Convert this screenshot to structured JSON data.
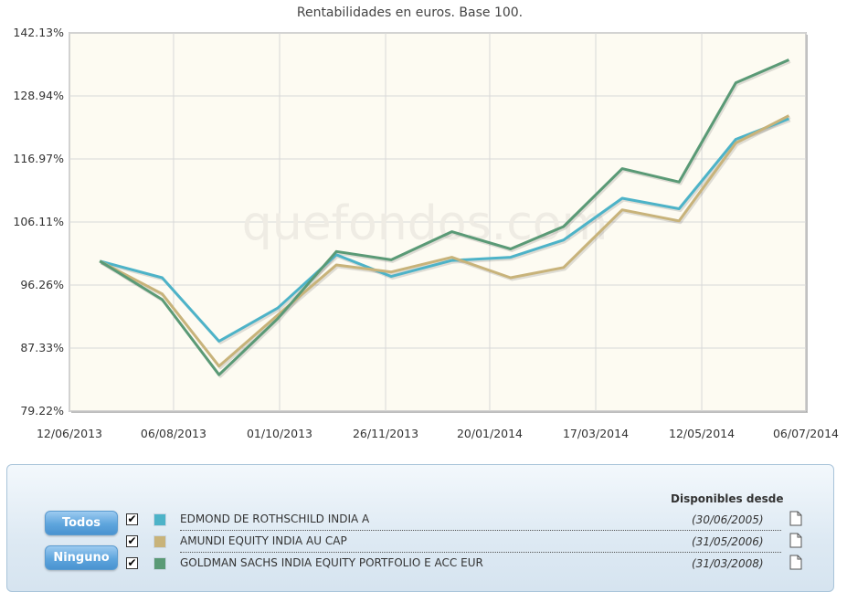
{
  "chart_data": {
    "type": "line",
    "title": "Rentabilidades en euros. Base 100.",
    "watermark": "quefondos.com",
    "y_ticks": [
      "142.13%",
      "128.94%",
      "116.97%",
      "106.11%",
      "96.26%",
      "87.33%",
      "79.22%"
    ],
    "x_ticks": [
      "12/06/2013",
      "06/08/2013",
      "01/10/2013",
      "26/11/2013",
      "20/01/2014",
      "17/03/2014",
      "12/05/2014",
      "06/07/2014"
    ],
    "x_tick_dates": [
      "2013-06-12",
      "2013-08-06",
      "2013-10-01",
      "2013-11-26",
      "2014-01-20",
      "2014-03-17",
      "2014-05-12",
      "2014-07-06"
    ],
    "x": [
      "2013-06-28",
      "2013-07-31",
      "2013-08-30",
      "2013-09-30",
      "2013-10-31",
      "2013-11-29",
      "2013-12-31",
      "2014-01-31",
      "2014-02-28",
      "2014-03-31",
      "2014-04-30",
      "2014-05-30",
      "2014-06-27"
    ],
    "ylim": [
      79.22,
      142.13
    ],
    "grid": true,
    "background": "#fdfbf2",
    "series": [
      {
        "name": "EDMOND DE ROTHSCHILD INDIA A",
        "color": "#4db3c8",
        "values": [
          100.0,
          97.4,
          88.3,
          93.0,
          101.0,
          97.6,
          100.1,
          100.6,
          103.3,
          110.2,
          108.4,
          120.7,
          124.6
        ]
      },
      {
        "name": "AMUNDI EQUITY INDIA AU CAP",
        "color": "#c8b37a",
        "values": [
          100.0,
          95.0,
          85.0,
          92.0,
          99.4,
          98.3,
          100.6,
          97.4,
          99.0,
          108.2,
          106.3,
          120.0,
          125.2
        ]
      },
      {
        "name": "GOLDMAN SACHS INDIA EQUITY PORTFOLIO E ACC EUR",
        "color": "#5a9a76",
        "values": [
          100.0,
          94.2,
          83.9,
          91.5,
          101.5,
          100.2,
          104.6,
          101.9,
          105.4,
          115.3,
          113.0,
          131.7,
          136.5
        ]
      }
    ]
  },
  "legend": {
    "header": "Disponibles desde",
    "todos_label": "Todos",
    "ninguno_label": "Ninguno",
    "rows": [
      {
        "checked": "✔",
        "name": "EDMOND DE ROTHSCHILD INDIA A",
        "since": "(30/06/2005)",
        "color": "#4db3c8"
      },
      {
        "checked": "✔",
        "name": "AMUNDI EQUITY INDIA AU CAP",
        "since": "(31/05/2006)",
        "color": "#c8b37a"
      },
      {
        "checked": "✔",
        "name": "GOLDMAN SACHS INDIA EQUITY PORTFOLIO E ACC EUR",
        "since": "(31/03/2008)",
        "color": "#5a9a76"
      }
    ]
  }
}
